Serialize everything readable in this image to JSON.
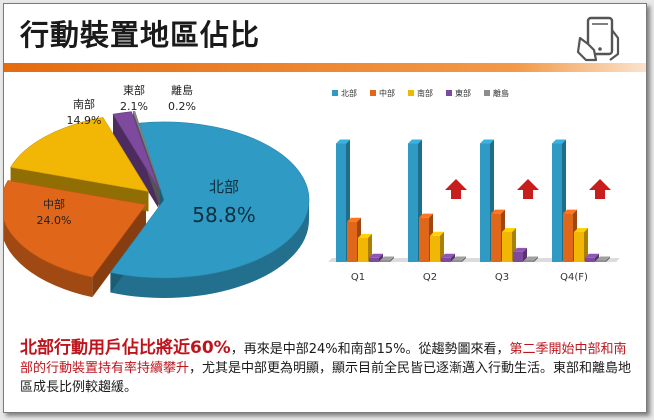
{
  "title": "行動裝置地區佔比",
  "colors": {
    "accent": "#e56b0f",
    "north": "#2f9bc4",
    "central": "#e0661a",
    "south": "#f2b705",
    "east": "#7e4a9e",
    "islands": "#8c8c8c",
    "arrow": "#c81e1e"
  },
  "icon": "smartphone-hand-icon",
  "summary": {
    "lead": "北部行動用戶佔比將近60%",
    "part1": "，再來是中部24%和南部15%。從趨勢圖來看，",
    "highlight": "第二季開始中部和南部的行動裝置持有率持續攀升",
    "part2": "，尤其是中部更為明顯，顯示目前全民皆已逐漸邁入行動生活。東部和離島地區成長比例較趨緩。"
  },
  "chart_data": [
    {
      "type": "pie",
      "labels": [
        "北部",
        "中部",
        "南部",
        "東部",
        "離島"
      ],
      "values": [
        58.8,
        24.0,
        14.9,
        2.1,
        0.2
      ],
      "value_labels": [
        "58.8%",
        "24.0%",
        "14.9%",
        "2.1%",
        "0.2%"
      ]
    },
    {
      "type": "bar",
      "categories": [
        "Q1",
        "Q2",
        "Q3",
        "Q4(F)"
      ],
      "legend": [
        "北部",
        "中部",
        "南部",
        "東部",
        "離島"
      ],
      "legend_position": "top",
      "grid": false,
      "ylim": [
        0,
        100
      ],
      "series": [
        {
          "name": "北部",
          "values": [
            58.8,
            58.8,
            58.8,
            58.8
          ]
        },
        {
          "name": "中部",
          "values": [
            20,
            22,
            24,
            24
          ]
        },
        {
          "name": "南部",
          "values": [
            12,
            13,
            14.9,
            14.9
          ]
        },
        {
          "name": "東部",
          "values": [
            2.1,
            2.1,
            5,
            2.1
          ]
        },
        {
          "name": "離島",
          "values": [
            0.2,
            0.2,
            0.2,
            0.2
          ]
        }
      ],
      "growth_arrows": [
        "Q2",
        "Q3",
        "Q4(F)"
      ]
    }
  ]
}
